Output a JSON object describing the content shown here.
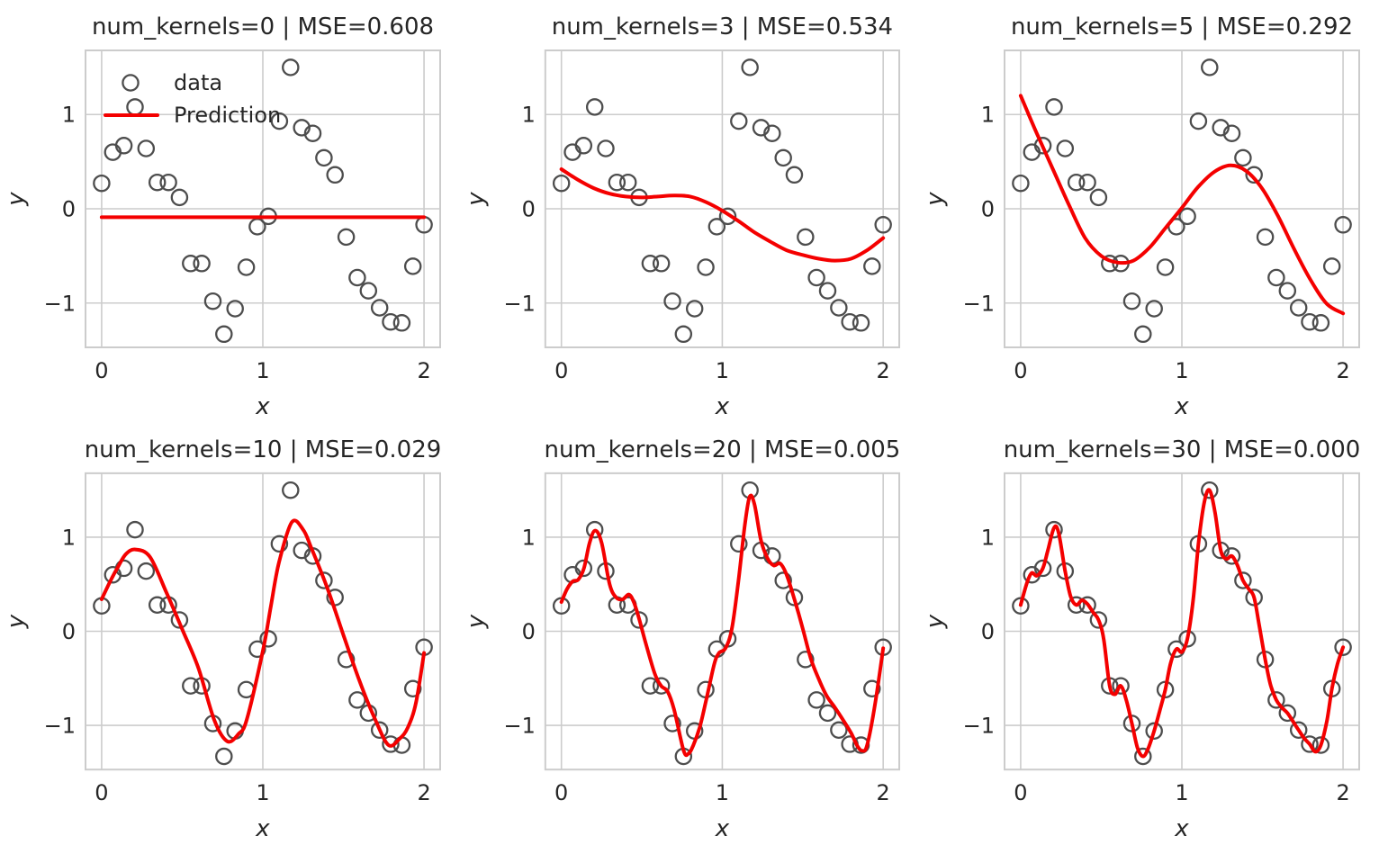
{
  "figure": {
    "background": "#ffffff",
    "text_color": "#262626",
    "grid_color": "#cccccc",
    "scatter_color": "#4d4d4d",
    "prediction_color": "#f40000"
  },
  "chart_data": {
    "type": "scatter",
    "layout": "2 rows x 3 columns",
    "xlabel": "x",
    "ylabel": "y",
    "xlim": [
      -0.1,
      2.1
    ],
    "ylim": [
      -1.47,
      1.68
    ],
    "xticks": [
      0,
      1,
      2
    ],
    "yticks": [
      -1,
      0,
      1
    ],
    "grid": true,
    "legend": {
      "location": "upper left of first subplot only",
      "data_label": "data",
      "prediction_label": "Prediction"
    },
    "scatter": {
      "name": "data",
      "x": [
        0,
        0.069,
        0.138,
        0.207,
        0.276,
        0.345,
        0.414,
        0.483,
        0.552,
        0.621,
        0.69,
        0.759,
        0.828,
        0.897,
        0.966,
        1.034,
        1.103,
        1.172,
        1.241,
        1.31,
        1.379,
        1.448,
        1.517,
        1.586,
        1.655,
        1.724,
        1.793,
        1.862,
        1.931,
        2
      ],
      "y": [
        0.27,
        0.6,
        0.67,
        1.08,
        0.64,
        0.28,
        0.28,
        0.12,
        -0.58,
        -0.58,
        -0.98,
        -1.33,
        -1.06,
        -0.62,
        -0.19,
        -0.08,
        0.93,
        1.5,
        0.86,
        0.8,
        0.54,
        0.36,
        -0.3,
        -0.73,
        -0.87,
        -1.05,
        -1.2,
        -1.21,
        -0.61,
        -0.17
      ]
    },
    "subplots": [
      {
        "title": "num_kernels=0 | MSE=0.608",
        "num_kernels": 0,
        "mse": 0.608,
        "prediction": {
          "x": [
            0,
            2
          ],
          "y": [
            -0.09,
            -0.09
          ]
        }
      },
      {
        "title": "num_kernels=3 | MSE=0.534",
        "num_kernels": 3,
        "mse": 0.534,
        "prediction": {
          "x": [
            0,
            0.1,
            0.2,
            0.3,
            0.4,
            0.5,
            0.6,
            0.7,
            0.8,
            0.9,
            1,
            1.1,
            1.2,
            1.3,
            1.4,
            1.5,
            1.6,
            1.7,
            1.8,
            1.9,
            2
          ],
          "y": [
            0.42,
            0.31,
            0.22,
            0.16,
            0.13,
            0.12,
            0.13,
            0.14,
            0.13,
            0.07,
            -0.02,
            -0.13,
            -0.25,
            -0.35,
            -0.44,
            -0.49,
            -0.53,
            -0.55,
            -0.53,
            -0.44,
            -0.31
          ]
        }
      },
      {
        "title": "num_kernels=5 | MSE=0.292",
        "num_kernels": 5,
        "mse": 0.292,
        "prediction": {
          "x": [
            0,
            0.1,
            0.2,
            0.3,
            0.4,
            0.5,
            0.6,
            0.7,
            0.8,
            0.9,
            1,
            1.1,
            1.2,
            1.3,
            1.4,
            1.5,
            1.6,
            1.7,
            1.8,
            1.9,
            2
          ],
          "y": [
            1.2,
            0.8,
            0.42,
            0.04,
            -0.31,
            -0.5,
            -0.57,
            -0.55,
            -0.41,
            -0.2,
            0.01,
            0.23,
            0.39,
            0.46,
            0.4,
            0.21,
            -0.09,
            -0.44,
            -0.76,
            -1.01,
            -1.11
          ]
        }
      },
      {
        "title": "num_kernels=10 | MSE=0.029",
        "num_kernels": 10,
        "mse": 0.029,
        "prediction": {
          "x": [
            0,
            0.05,
            0.1,
            0.15,
            0.21,
            0.3,
            0.4,
            0.5,
            0.6,
            0.7,
            0.78,
            0.85,
            0.9,
            1,
            1.05,
            1.1,
            1.18,
            1.25,
            1.3,
            1.4,
            1.5,
            1.6,
            1.7,
            1.78,
            1.85,
            1.9,
            1.95,
            2
          ],
          "y": [
            0.34,
            0.52,
            0.68,
            0.82,
            0.87,
            0.79,
            0.42,
            0.02,
            -0.39,
            -0.95,
            -1.17,
            -1.09,
            -0.94,
            -0.21,
            0.27,
            0.73,
            1.16,
            1.08,
            0.89,
            0.46,
            -0.04,
            -0.53,
            -0.95,
            -1.21,
            -1.14,
            -1.02,
            -0.76,
            -0.23
          ]
        }
      },
      {
        "title": "num_kernels=20 | MSE=0.005",
        "num_kernels": 20,
        "mse": 0.005,
        "prediction": {
          "x": [
            0,
            0.035,
            0.07,
            0.105,
            0.14,
            0.175,
            0.21,
            0.25,
            0.3,
            0.34,
            0.38,
            0.42,
            0.45,
            0.48,
            0.52,
            0.58,
            0.62,
            0.66,
            0.7,
            0.76,
            0.79,
            0.82,
            0.86,
            0.9,
            0.95,
            0.98,
            1.02,
            1.06,
            1.1,
            1.14,
            1.17,
            1.2,
            1.24,
            1.28,
            1.32,
            1.36,
            1.4,
            1.45,
            1.5,
            1.55,
            1.6,
            1.65,
            1.7,
            1.75,
            1.8,
            1.84,
            1.87,
            1.9,
            1.95,
            2
          ],
          "y": [
            0.31,
            0.45,
            0.53,
            0.55,
            0.67,
            0.94,
            1.07,
            0.94,
            0.5,
            0.36,
            0.34,
            0.39,
            0.31,
            0.15,
            -0.1,
            -0.45,
            -0.58,
            -0.64,
            -0.83,
            -1.27,
            -1.3,
            -1.21,
            -1.02,
            -0.73,
            -0.35,
            -0.23,
            -0.18,
            0.03,
            0.53,
            1.13,
            1.43,
            1.35,
            0.97,
            0.78,
            0.7,
            0.72,
            0.6,
            0.33,
            0.03,
            -0.29,
            -0.51,
            -0.69,
            -0.81,
            -0.94,
            -1.08,
            -1.22,
            -1.27,
            -1.21,
            -0.77,
            -0.18
          ]
        }
      },
      {
        "title": "num_kernels=30 | MSE=0.000",
        "num_kernels": 30,
        "mse": 0.0,
        "prediction": {
          "x": [
            0,
            0.04,
            0.069,
            0.1,
            0.138,
            0.17,
            0.207,
            0.235,
            0.276,
            0.31,
            0.345,
            0.38,
            0.414,
            0.45,
            0.483,
            0.515,
            0.552,
            0.585,
            0.621,
            0.655,
            0.69,
            0.725,
            0.759,
            0.79,
            0.828,
            0.862,
            0.897,
            0.93,
            0.966,
            1,
            1.034,
            1.07,
            1.103,
            1.14,
            1.172,
            1.205,
            1.241,
            1.275,
            1.31,
            1.345,
            1.379,
            1.415,
            1.448,
            1.48,
            1.517,
            1.55,
            1.586,
            1.62,
            1.655,
            1.69,
            1.724,
            1.76,
            1.793,
            1.828,
            1.862,
            1.9,
            1.931,
            1.965,
            2
          ],
          "y": [
            0.28,
            0.52,
            0.62,
            0.59,
            0.67,
            0.87,
            1.1,
            1.05,
            0.64,
            0.37,
            0.28,
            0.33,
            0.29,
            0.2,
            0.12,
            -0.08,
            -0.58,
            -0.67,
            -0.58,
            -0.73,
            -0.98,
            -1.24,
            -1.33,
            -1.25,
            -1.06,
            -0.85,
            -0.62,
            -0.34,
            -0.19,
            -0.22,
            -0.08,
            0.33,
            0.93,
            1.38,
            1.5,
            1.27,
            0.86,
            0.77,
            0.8,
            0.7,
            0.54,
            0.45,
            0.36,
            0.06,
            -0.3,
            -0.57,
            -0.73,
            -0.81,
            -0.87,
            -0.96,
            -1.05,
            -1.14,
            -1.2,
            -1.28,
            -1.21,
            -0.95,
            -0.61,
            -0.35,
            -0.17
          ]
        }
      }
    ]
  }
}
